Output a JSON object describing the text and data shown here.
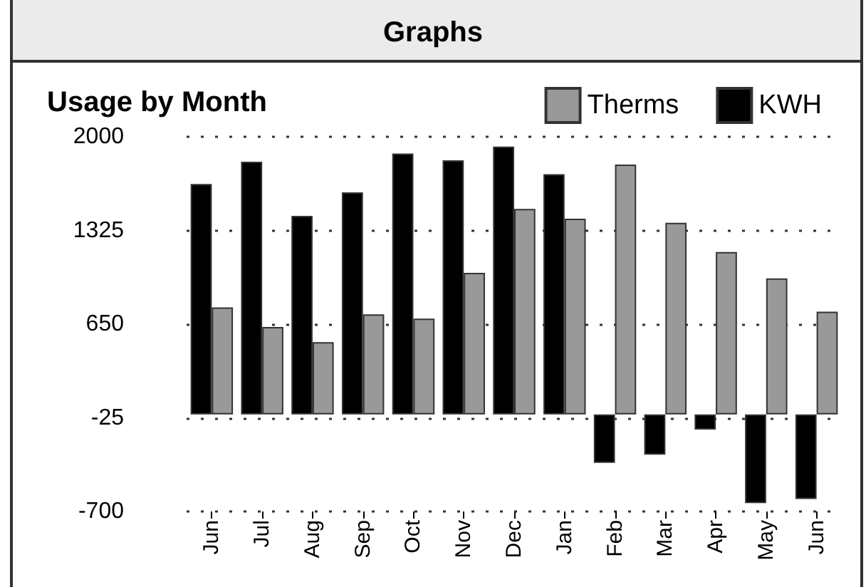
{
  "chart_data": {
    "type": "bar",
    "title": "Graphs",
    "subtitle": "Usage by Month",
    "categories": [
      "Jun",
      "Jul",
      "Aug",
      "Sep",
      "Oct",
      "Nov",
      "Dec",
      "Jan",
      "Feb",
      "Mar",
      "Apr",
      "May",
      "Jun"
    ],
    "series": [
      {
        "name": "KWH",
        "color": "#000000",
        "values": [
          1660,
          1820,
          1430,
          1600,
          1880,
          1830,
          1930,
          1730,
          -350,
          -290,
          -110,
          -640,
          -610
        ]
      },
      {
        "name": "Therms",
        "color": "#999999",
        "values": [
          770,
          630,
          520,
          720,
          690,
          1020,
          1480,
          1410,
          1800,
          1380,
          1170,
          980,
          740
        ]
      }
    ],
    "ylim": [
      -700,
      2000
    ],
    "yticks": [
      2000,
      1325,
      650,
      -25,
      -700
    ],
    "grid": "y",
    "legend": "top right"
  }
}
